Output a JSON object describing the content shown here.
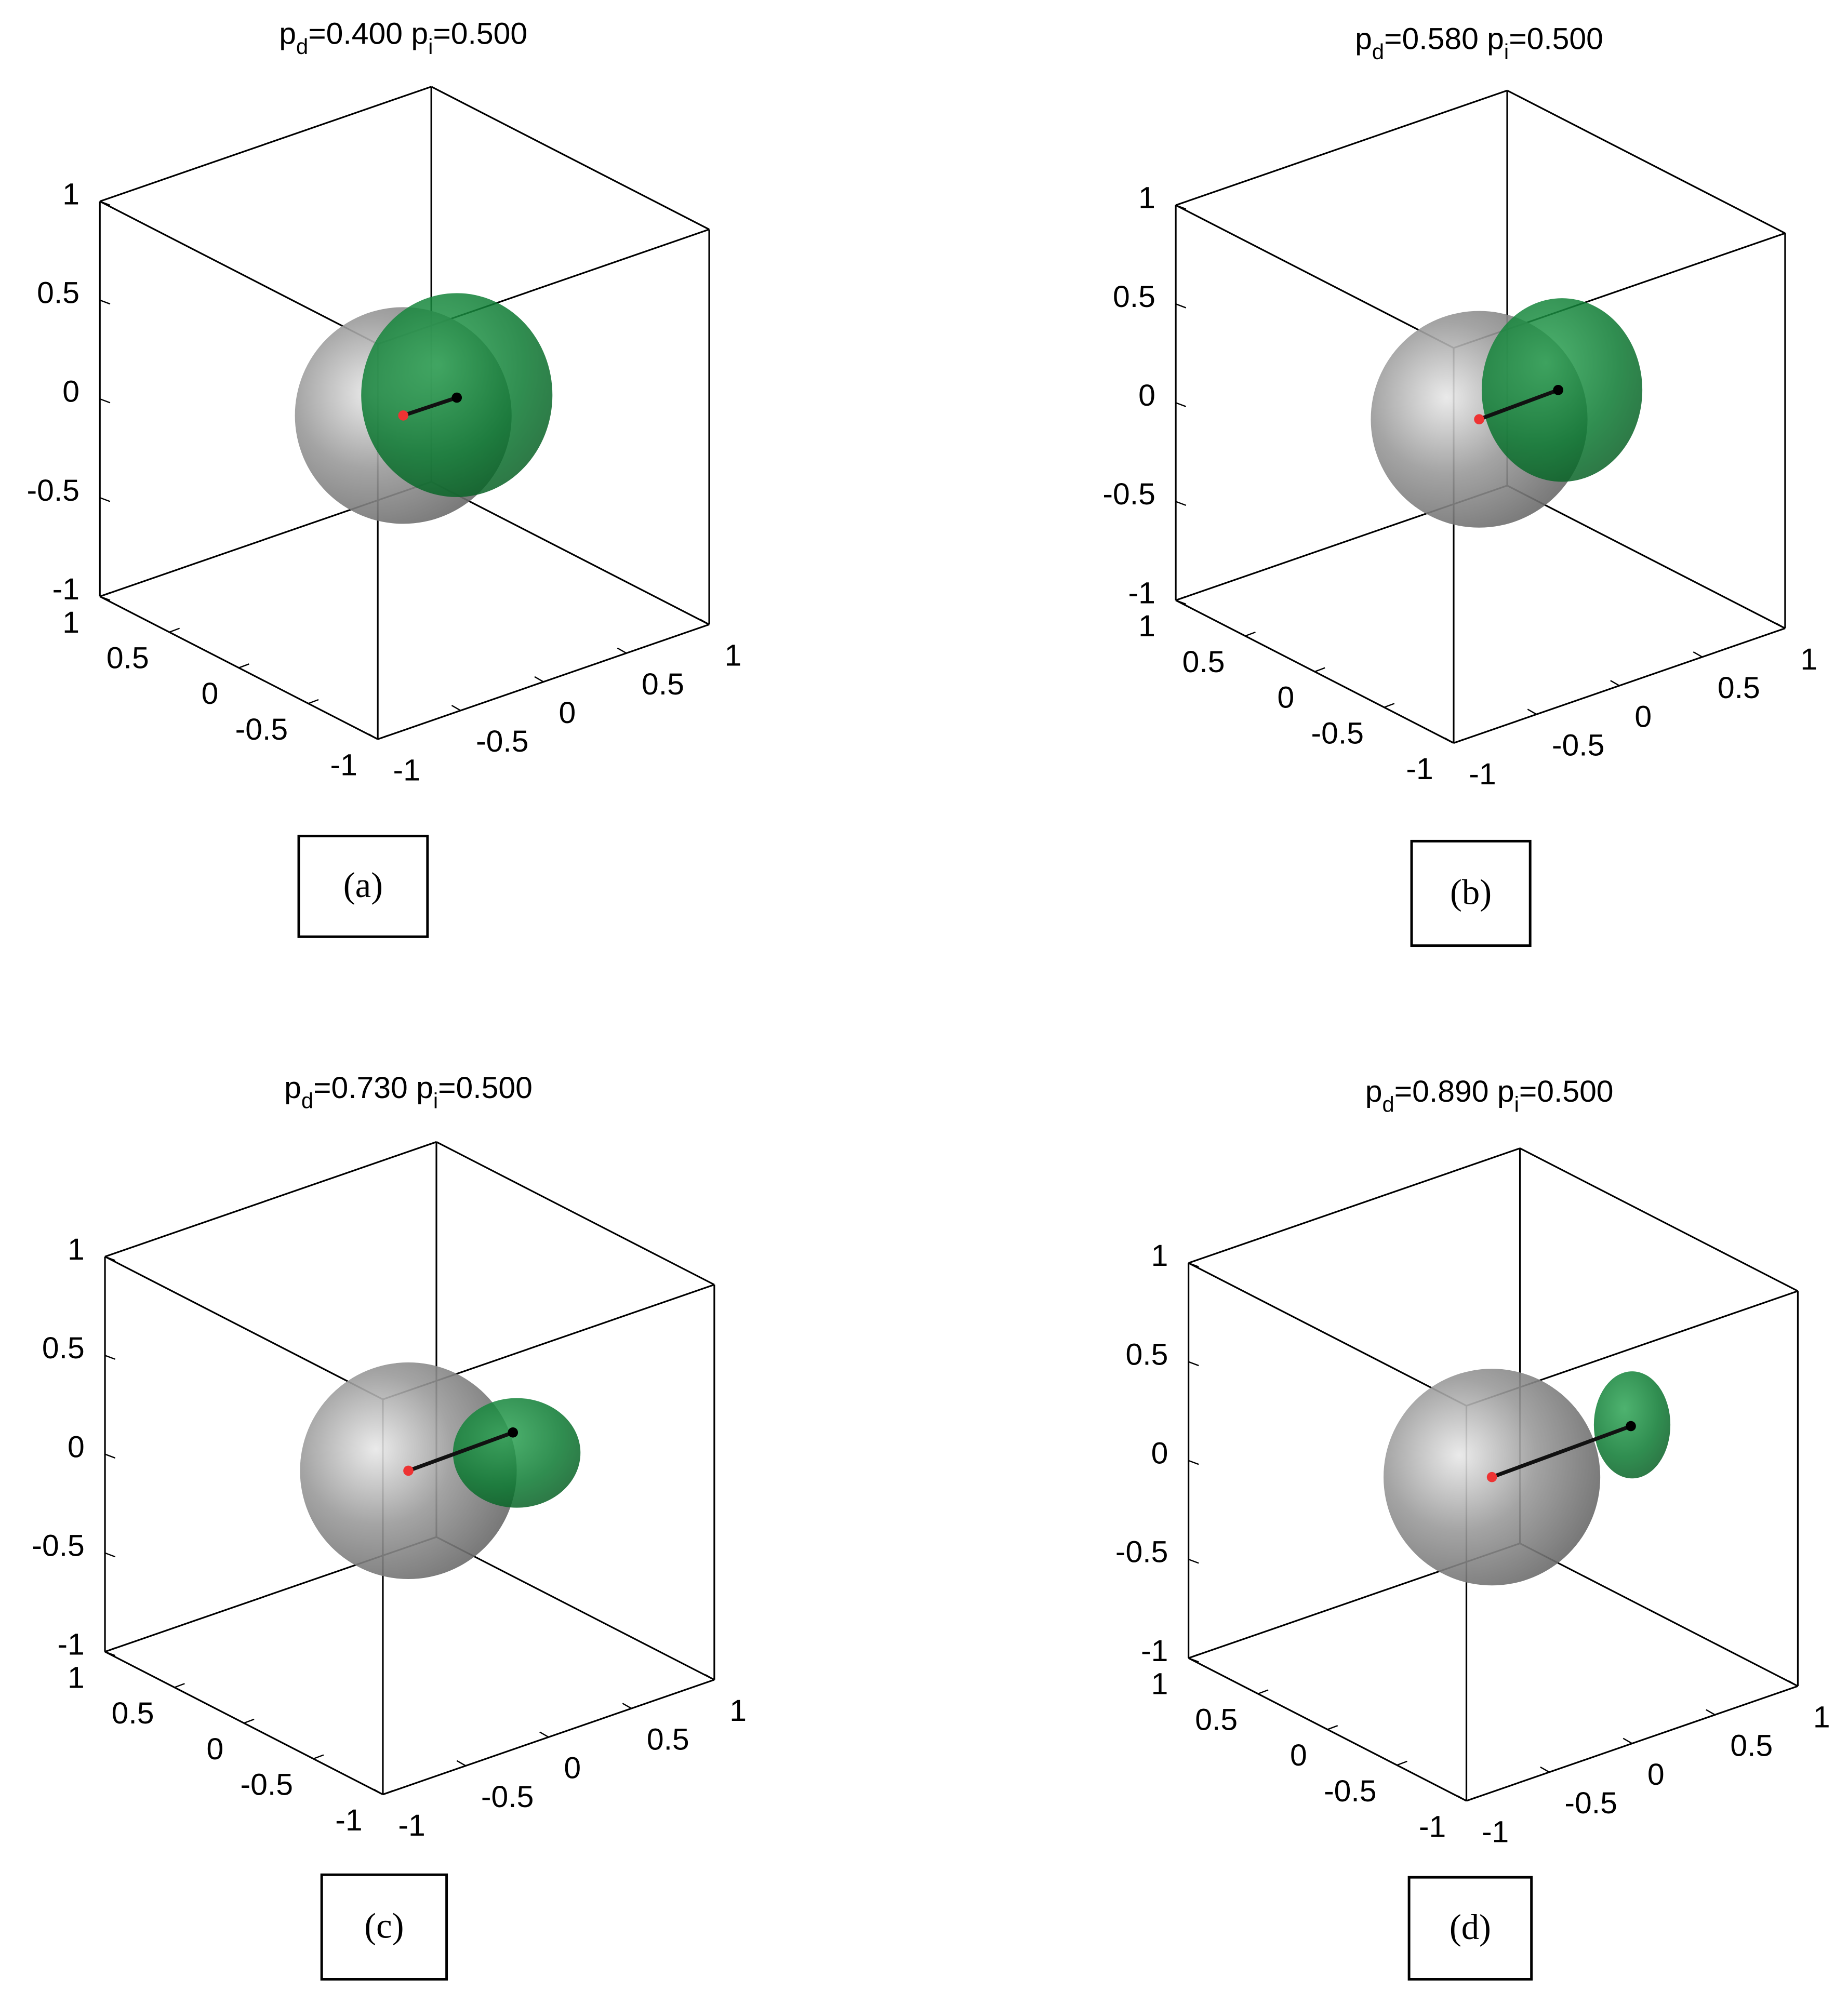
{
  "chart_data": [
    {
      "type": "surface3d",
      "title_parts": [
        "p",
        "d",
        "=0.400  p",
        "i",
        "=0.500"
      ],
      "label": "(a)",
      "xlim": [
        -1,
        1
      ],
      "ylim": [
        -1,
        1
      ],
      "zlim": [
        -1,
        1
      ],
      "xticks": [
        -1,
        -0.5,
        0,
        0.5,
        1
      ],
      "yticks": [
        -1,
        -0.5,
        0,
        0.5,
        1
      ],
      "zticks": [
        -1,
        -0.5,
        0,
        0.5,
        1
      ]
    },
    {
      "type": "surface3d",
      "title_parts": [
        "p",
        "d",
        "=0.580  p",
        "i",
        "=0.500"
      ],
      "label": "(b)",
      "xlim": [
        -1,
        1
      ],
      "ylim": [
        -1,
        1
      ],
      "zlim": [
        -1,
        1
      ],
      "xticks": [
        -1,
        -0.5,
        0,
        0.5,
        1
      ],
      "yticks": [
        -1,
        -0.5,
        0,
        0.5,
        1
      ],
      "zticks": [
        -1,
        -0.5,
        0,
        0.5,
        1
      ]
    },
    {
      "type": "surface3d",
      "title_parts": [
        "p",
        "d",
        "=0.730  p",
        "i",
        "=0.500"
      ],
      "label": "(c)",
      "xlim": [
        -1,
        1
      ],
      "ylim": [
        -1,
        1
      ],
      "zlim": [
        -1,
        1
      ],
      "xticks": [
        -1,
        -0.5,
        0,
        0.5,
        1
      ],
      "yticks": [
        -1,
        -0.5,
        0,
        0.5,
        1
      ],
      "zticks": [
        -1,
        -0.5,
        0,
        0.5,
        1
      ]
    },
    {
      "type": "surface3d",
      "title_parts": [
        "p",
        "d",
        "=0.890  p",
        "i",
        "=0.500"
      ],
      "label": "(d)",
      "xlim": [
        -1,
        1
      ],
      "ylim": [
        -1,
        1
      ],
      "zlim": [
        -1,
        1
      ],
      "xticks": [
        -1,
        -0.5,
        0,
        0.5,
        1
      ],
      "yticks": [
        -1,
        -0.5,
        0,
        0.5,
        1
      ],
      "zticks": [
        -1,
        -0.5,
        0,
        0.5,
        1
      ]
    }
  ]
}
